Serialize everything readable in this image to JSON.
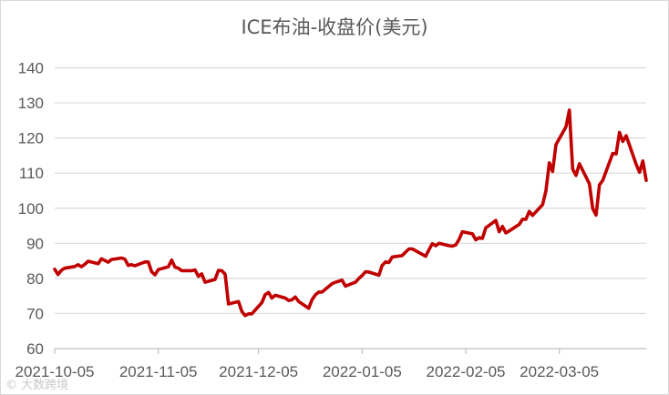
{
  "chart_data": {
    "type": "line",
    "title": "ICE布油-收盘价(美元)",
    "ylim": [
      60,
      140
    ],
    "yticks": [
      60,
      70,
      80,
      90,
      100,
      110,
      120,
      130,
      140
    ],
    "xticks": [
      "2021-10-05",
      "2021-11-05",
      "2021-12-05",
      "2022-01-05",
      "2022-02-05",
      "2022-03-05"
    ],
    "x_range": [
      "2021-10-05",
      "2022-03-31"
    ],
    "grid": "horizontal",
    "legend": "none",
    "color": "#c00000",
    "series": [
      {
        "x": [
          "2021-10-05",
          "2021-10-06",
          "2021-10-07",
          "2021-10-08",
          "2021-10-11",
          "2021-10-12",
          "2021-10-13",
          "2021-10-14",
          "2021-10-15",
          "2021-10-18",
          "2021-10-19",
          "2021-10-20",
          "2021-10-21",
          "2021-10-22",
          "2021-10-25",
          "2021-10-26",
          "2021-10-27",
          "2021-10-28",
          "2021-10-29",
          "2021-11-01",
          "2021-11-02",
          "2021-11-03",
          "2021-11-04",
          "2021-11-05",
          "2021-11-08",
          "2021-11-09",
          "2021-11-10",
          "2021-11-11",
          "2021-11-12",
          "2021-11-15",
          "2021-11-16",
          "2021-11-17",
          "2021-11-18",
          "2021-11-19",
          "2021-11-22",
          "2021-11-23",
          "2021-11-24",
          "2021-11-25",
          "2021-11-26",
          "2021-11-29",
          "2021-11-30",
          "2021-12-01",
          "2021-12-02",
          "2021-12-03",
          "2021-12-06",
          "2021-12-07",
          "2021-12-08",
          "2021-12-09",
          "2021-12-10",
          "2021-12-13",
          "2021-12-14",
          "2021-12-15",
          "2021-12-16",
          "2021-12-17",
          "2021-12-20",
          "2021-12-21",
          "2021-12-22",
          "2021-12-23",
          "2021-12-24",
          "2021-12-27",
          "2021-12-28",
          "2021-12-29",
          "2021-12-30",
          "2021-12-31",
          "2022-01-03",
          "2022-01-04",
          "2022-01-05",
          "2022-01-06",
          "2022-01-07",
          "2022-01-10",
          "2022-01-11",
          "2022-01-12",
          "2022-01-13",
          "2022-01-14",
          "2022-01-17",
          "2022-01-18",
          "2022-01-19",
          "2022-01-20",
          "2022-01-21",
          "2022-01-24",
          "2022-01-25",
          "2022-01-26",
          "2022-01-27",
          "2022-01-28",
          "2022-01-31",
          "2022-02-01",
          "2022-02-02",
          "2022-02-03",
          "2022-02-04",
          "2022-02-07",
          "2022-02-08",
          "2022-02-09",
          "2022-02-10",
          "2022-02-11",
          "2022-02-14",
          "2022-02-15",
          "2022-02-16",
          "2022-02-17",
          "2022-02-18",
          "2022-02-21",
          "2022-02-22",
          "2022-02-23",
          "2022-02-24",
          "2022-02-25",
          "2022-02-28",
          "2022-03-01",
          "2022-03-02",
          "2022-03-03",
          "2022-03-04",
          "2022-03-07",
          "2022-03-08",
          "2022-03-09",
          "2022-03-10",
          "2022-03-11",
          "2022-03-14",
          "2022-03-15",
          "2022-03-16",
          "2022-03-17",
          "2022-03-18",
          "2022-03-21",
          "2022-03-22",
          "2022-03-23",
          "2022-03-24",
          "2022-03-25",
          "2022-03-28",
          "2022-03-29",
          "2022-03-30",
          "2022-03-31"
        ],
        "y": [
          82.6,
          81.1,
          82.3,
          82.9,
          83.4,
          83.9,
          83.3,
          84.0,
          84.9,
          84.2,
          85.6,
          85.1,
          84.6,
          85.4,
          85.8,
          85.5,
          83.7,
          83.9,
          83.6,
          84.7,
          84.7,
          81.9,
          81.0,
          82.5,
          83.3,
          85.2,
          83.2,
          82.9,
          82.2,
          82.2,
          82.4,
          80.6,
          81.3,
          78.9,
          79.7,
          82.3,
          82.2,
          81.2,
          72.7,
          73.4,
          70.6,
          69.4,
          69.9,
          69.9,
          73.1,
          75.4,
          76.0,
          74.4,
          75.2,
          74.4,
          73.7,
          73.9,
          74.7,
          73.4,
          71.5,
          73.9,
          75.3,
          76.1,
          76.1,
          78.5,
          78.9,
          79.2,
          79.5,
          77.8,
          78.9,
          80.0,
          80.8,
          81.9,
          81.8,
          80.9,
          83.7,
          84.7,
          84.5,
          86.1,
          86.5,
          87.5,
          88.4,
          88.4,
          87.9,
          86.3,
          88.2,
          89.9,
          89.3,
          90.0,
          89.3,
          89.2,
          89.5,
          91.1,
          93.3,
          92.7,
          91.0,
          91.6,
          91.4,
          94.4,
          96.5,
          93.3,
          94.8,
          92.97,
          93.5,
          95.4,
          96.84,
          96.84,
          99.08,
          97.93,
          100.99,
          104.97,
          112.93,
          110.46,
          118.11,
          123.21,
          127.98,
          111.14,
          109.33,
          112.67,
          106.9,
          99.91,
          98.02,
          106.64,
          107.93,
          115.62,
          115.48,
          121.6,
          119.03,
          120.65,
          112.48,
          110.23,
          113.45,
          107.91
        ]
      }
    ]
  }
}
